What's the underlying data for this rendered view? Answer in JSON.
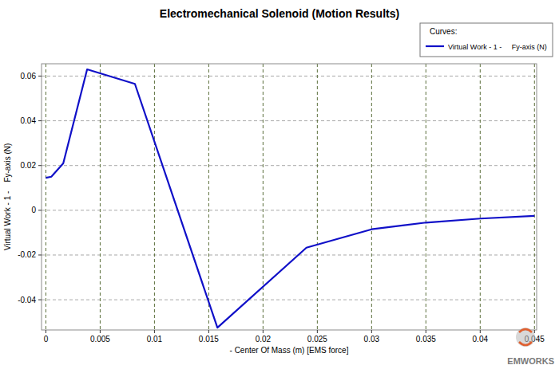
{
  "chart_data": {
    "type": "line",
    "title": "Electromechanical Solenoid (Motion Results)",
    "x_label": "- Center Of Mass (m) [EMS force]",
    "y_label": "Virtual Work - 1 -    Fy-axis (N)",
    "legend_title": "Curves:",
    "annotations": [
      "EMWORKS"
    ],
    "x": [
      0,
      0.0005,
      0.0016,
      0.0038,
      0.0082,
      0.0158,
      0.024,
      0.03,
      0.035,
      0.04,
      0.045
    ],
    "series": [
      {
        "name": "Virtual Work - 1 -     Fy-axis (N)",
        "color": "#1010c8",
        "values": [
          0.0145,
          0.015,
          0.021,
          0.063,
          0.0565,
          -0.0525,
          -0.0167,
          -0.0085,
          -0.0055,
          -0.0037,
          -0.0025
        ]
      }
    ],
    "xlim": [
      -0.0004,
      0.0452
    ],
    "ylim": [
      -0.0535,
      0.0655
    ],
    "xticks": [
      0,
      0.005,
      0.01,
      0.015,
      0.02,
      0.025,
      0.03,
      0.035,
      0.04,
      0.045
    ],
    "yticks": [
      -0.04,
      -0.02,
      0,
      0.02,
      0.04,
      0.06
    ],
    "grid": true,
    "legend": "top-right"
  }
}
